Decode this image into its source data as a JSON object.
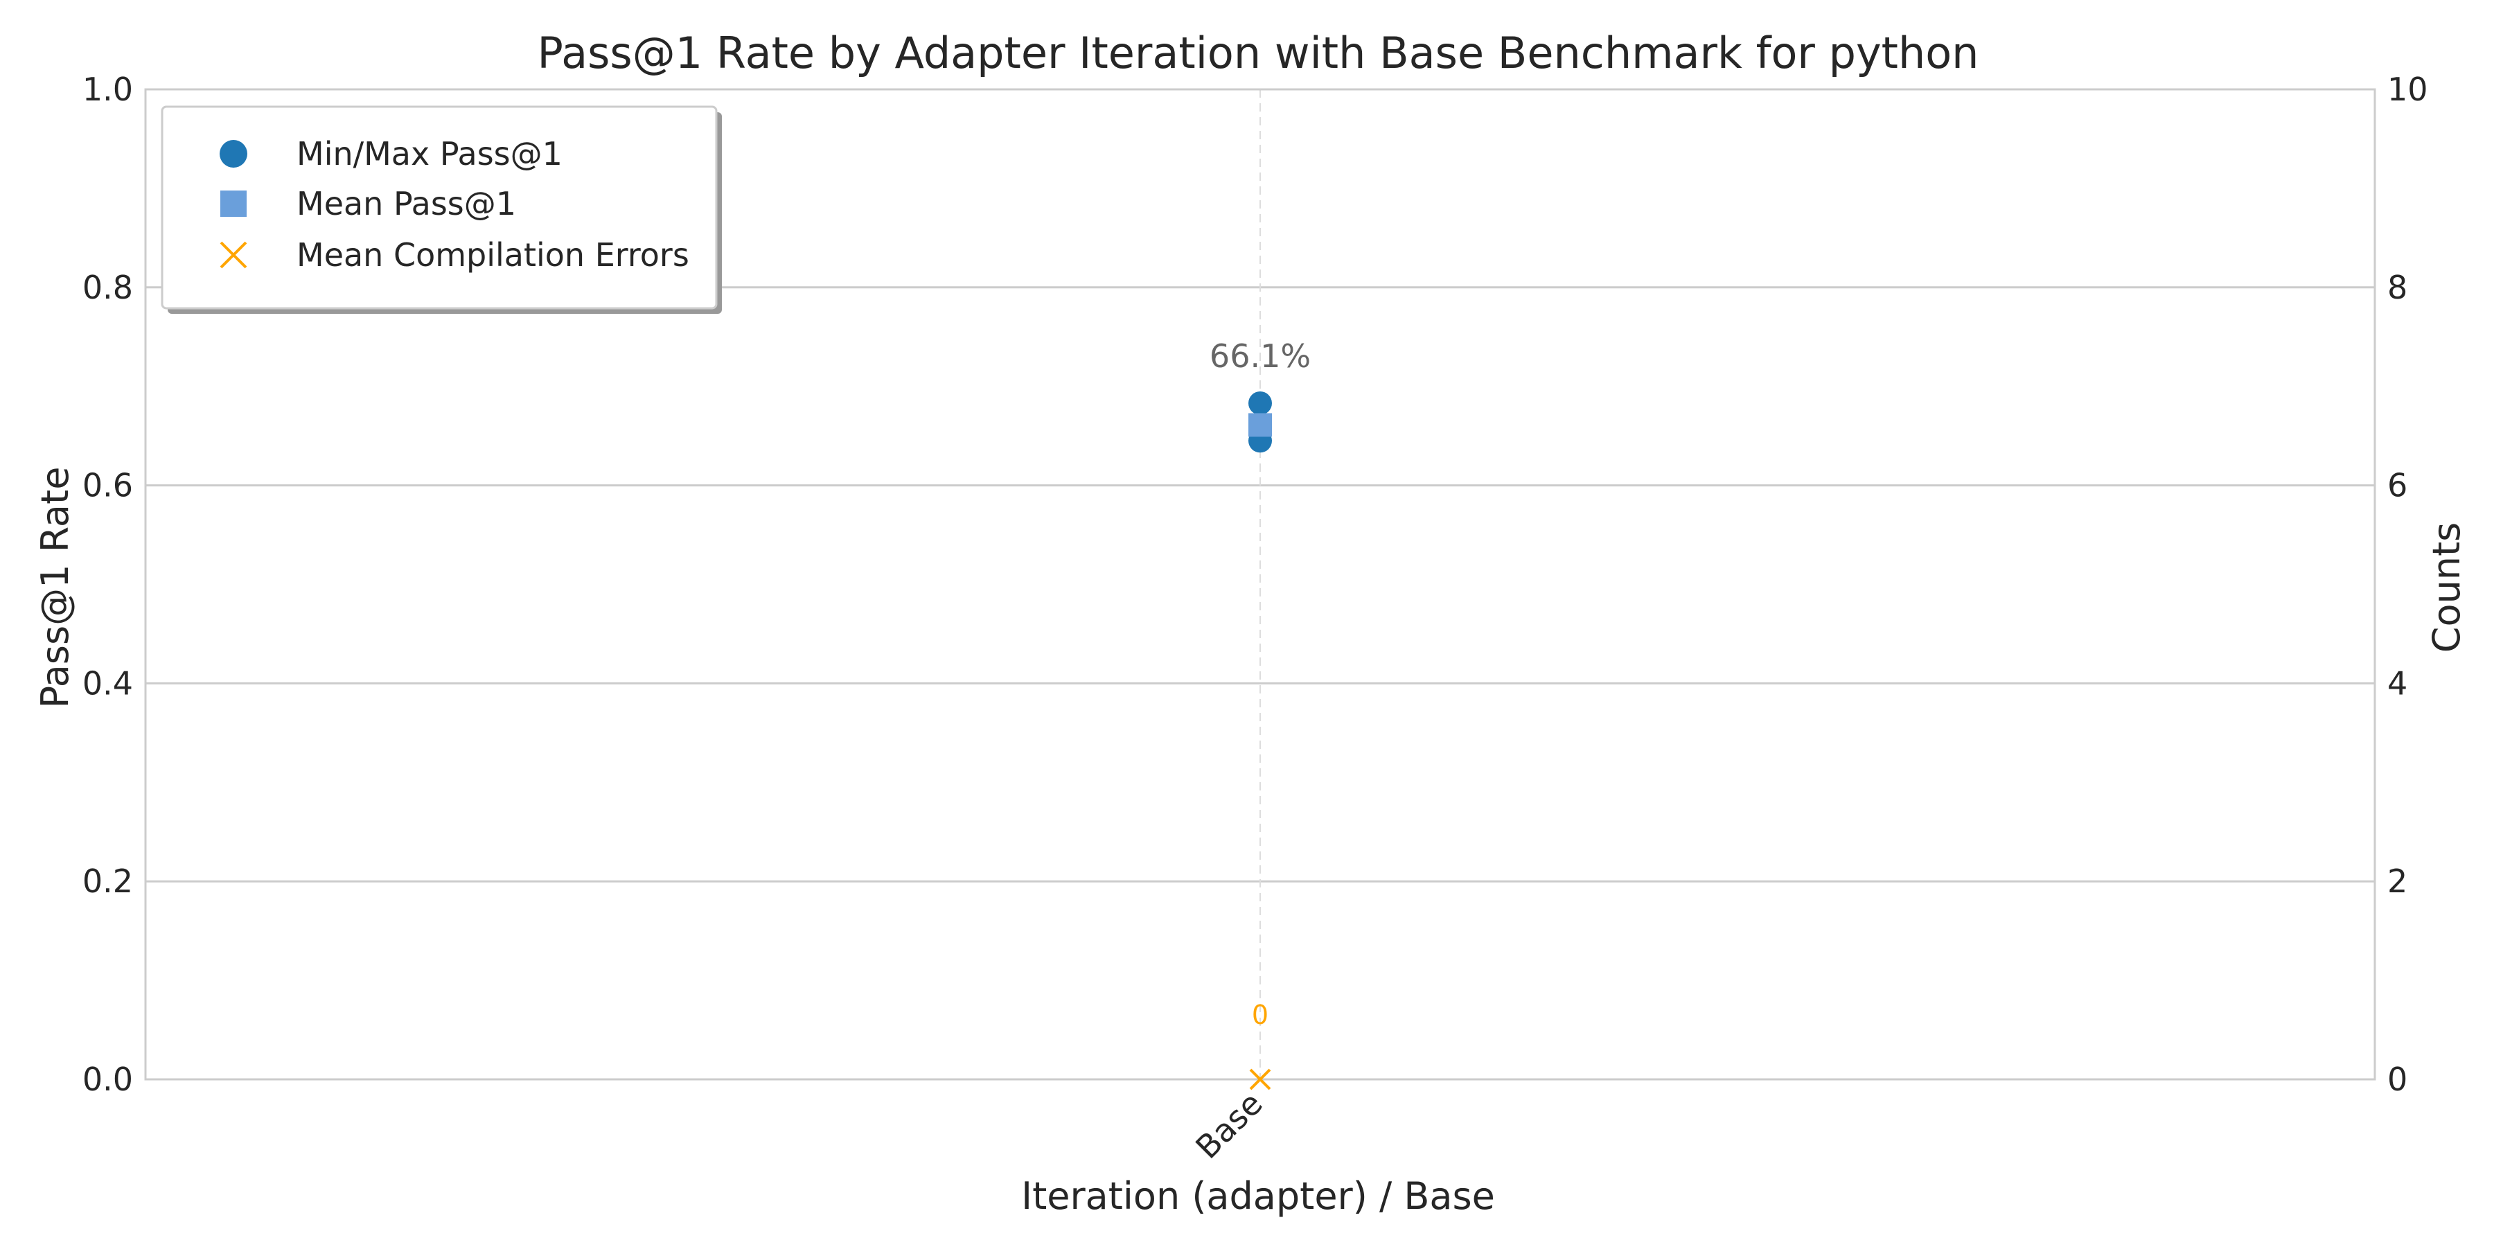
{
  "chart_data": {
    "type": "scatter",
    "title": "Pass@1 Rate by Adapter Iteration with Base Benchmark for python",
    "xlabel": "Iteration (adapter) / Base",
    "ylabel": "Pass@1 Rate",
    "y2label": "Counts",
    "categories": [
      "Base"
    ],
    "ylim": [
      0,
      1.0
    ],
    "y2lim": [
      0,
      10
    ],
    "yticks": [
      "0.0",
      "0.2",
      "0.4",
      "0.6",
      "0.8",
      "1.0"
    ],
    "y2ticks": [
      "0",
      "2",
      "4",
      "6",
      "8",
      "10"
    ],
    "grid": true,
    "legend_position": "upper-left",
    "series": [
      {
        "name": "Min/Max Pass@1",
        "marker": "circle",
        "color": "#1F77B4",
        "axis": "left",
        "values": [
          [
            0.645,
            0.683
          ]
        ]
      },
      {
        "name": "Mean Pass@1",
        "marker": "square",
        "color": "#6A9FDB",
        "axis": "left",
        "values": [
          0.661
        ]
      },
      {
        "name": "Mean Compilation Errors",
        "marker": "x",
        "color": "#FFA500",
        "axis": "right",
        "values": [
          0
        ]
      }
    ],
    "annotations": [
      {
        "category": "Base",
        "text": "66.1%",
        "axis": "left"
      },
      {
        "category": "Base",
        "text": "0",
        "axis": "right"
      }
    ]
  }
}
